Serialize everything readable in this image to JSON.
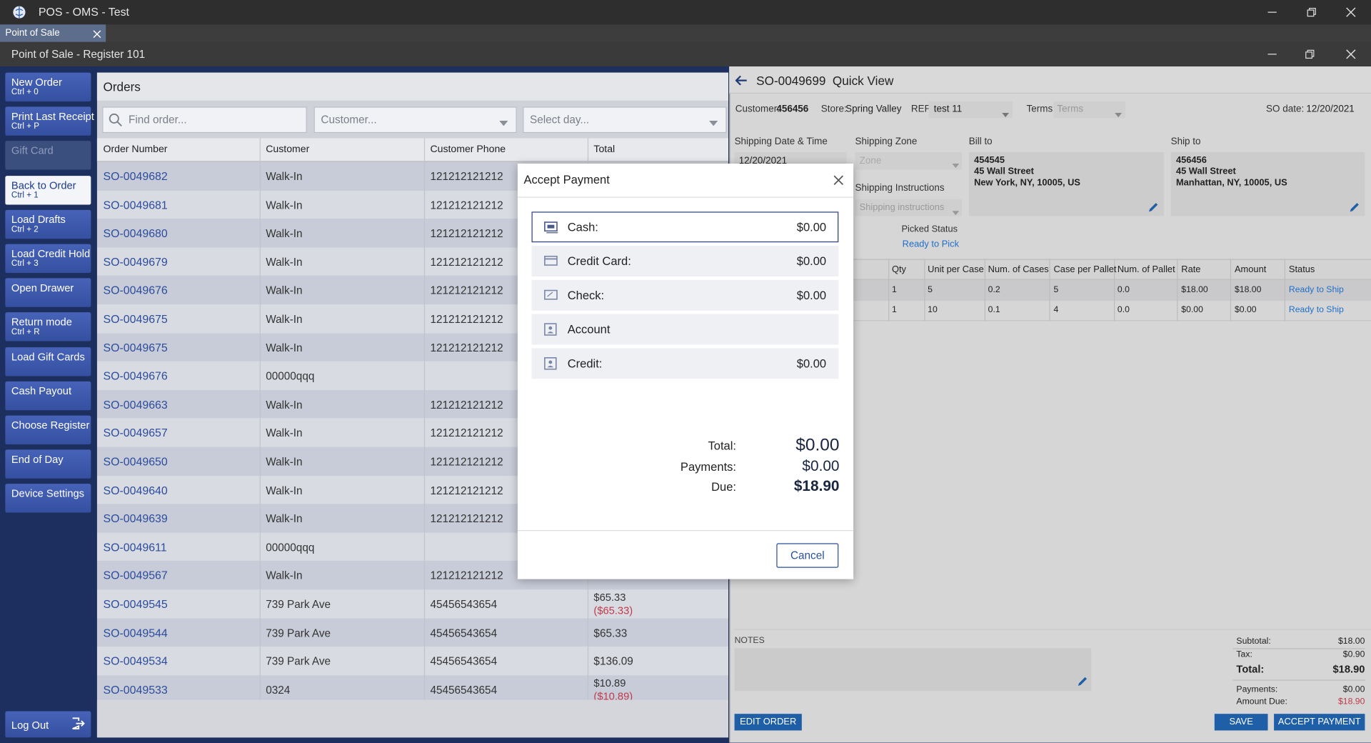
{
  "window": {
    "title": "POS - OMS - Test"
  },
  "tab": {
    "label": "Point of Sale"
  },
  "header": {
    "title": "Point of Sale - Register 101"
  },
  "sidebar": {
    "buttons": [
      {
        "label": "New Order",
        "shortcut": "Ctrl + 0"
      },
      {
        "label": "Print Last Receipt",
        "shortcut": "Ctrl + P"
      },
      {
        "label": "Gift Card"
      },
      {
        "label": "Back to Order",
        "shortcut": "Ctrl + 1"
      },
      {
        "label": "Load Drafts",
        "shortcut": "Ctrl + 2"
      },
      {
        "label": "Load Credit Hold",
        "shortcut": "Ctrl + 3"
      },
      {
        "label": "Open Drawer"
      },
      {
        "label": "Return mode",
        "shortcut": "Ctrl + R"
      },
      {
        "label": "Load Gift Cards"
      },
      {
        "label": "Cash Payout"
      },
      {
        "label": "Choose Register"
      },
      {
        "label": "End of Day"
      },
      {
        "label": "Device Settings"
      }
    ],
    "logout": "Log Out"
  },
  "orders": {
    "title": "Orders",
    "search": {
      "order": "Find order...",
      "customer": "Customer...",
      "day": "Select day..."
    },
    "columns": [
      "Order Number",
      "Customer",
      "Customer Phone",
      "Total"
    ],
    "rows": [
      {
        "order": "SO-0049682",
        "customer": "Walk-In",
        "phone": "121212121212"
      },
      {
        "order": "SO-0049681",
        "customer": "Walk-In",
        "phone": "121212121212"
      },
      {
        "order": "SO-0049680",
        "customer": "Walk-In",
        "phone": "121212121212"
      },
      {
        "order": "SO-0049679",
        "customer": "Walk-In",
        "phone": "121212121212"
      },
      {
        "order": "SO-0049676",
        "customer": "Walk-In",
        "phone": "121212121212"
      },
      {
        "order": "SO-0049675",
        "customer": "Walk-In",
        "phone": "121212121212"
      },
      {
        "order": "SO-0049675",
        "customer": "Walk-In",
        "phone": "121212121212"
      },
      {
        "order": "SO-0049676",
        "customer": "00000qqq"
      },
      {
        "order": "SO-0049663",
        "customer": "Walk-In",
        "phone": "121212121212"
      },
      {
        "order": "SO-0049657",
        "customer": "Walk-In",
        "phone": "121212121212"
      },
      {
        "order": "SO-0049650",
        "customer": "Walk-In",
        "phone": "121212121212"
      },
      {
        "order": "SO-0049640",
        "customer": "Walk-In",
        "phone": "121212121212"
      },
      {
        "order": "SO-0049639",
        "customer": "Walk-In",
        "phone": "121212121212"
      },
      {
        "order": "SO-0049611",
        "customer": "00000qqq"
      },
      {
        "order": "SO-0049567",
        "customer": "Walk-In",
        "phone": "121212121212"
      },
      {
        "order": "SO-0049545",
        "customer": "739 Park Ave",
        "phone": "45456543654",
        "total": "$65.33",
        "refund": "($65.33)"
      },
      {
        "order": "SO-0049544",
        "customer": "739 Park Ave",
        "phone": "45456543654",
        "total": "$65.33"
      },
      {
        "order": "SO-0049534",
        "customer": "739 Park Ave",
        "phone": "45456543654",
        "total": "$136.09"
      },
      {
        "order": "SO-0049533",
        "customer": "0324",
        "phone": "45456543654",
        "total": "$10.89",
        "refund": "($10.89)"
      }
    ]
  },
  "quick_view": {
    "title": "SO-0049699  Quick View",
    "customer": {
      "label": "Customer:",
      "value": "456456"
    },
    "store": {
      "label": "Store:",
      "value": "Spring Valley"
    },
    "rep": {
      "label": "REP:",
      "value": "test 11"
    },
    "terms": {
      "label": "Terms:",
      "value": "Terms"
    },
    "so_date": {
      "label": "SO date:",
      "value": "12/20/2021"
    },
    "shipping_date": {
      "label": "Shipping Date & Time",
      "value": "12/20/2021"
    },
    "shipping_zone": {
      "label": "Shipping Zone",
      "value": "Zone"
    },
    "shipping_instructions": {
      "label": "Shipping Instructions",
      "value": "Shipping instructions"
    },
    "bill_to": {
      "label": "Bill to",
      "lines": [
        "454545",
        "45 Wall Street",
        "New York, NY, 10005, US"
      ]
    },
    "ship_to": {
      "label": "Ship to",
      "lines": [
        "456456",
        "45 Wall Street",
        "Manhattan, NY, 10005, US"
      ]
    },
    "picked_status": {
      "label": "Picked Status",
      "value": "Ready to Pick"
    },
    "items": {
      "columns": [
        "Qty",
        "Unit per Case",
        "Num. of Cases",
        "Case per Pallet",
        "Num. of Pallet",
        "Rate",
        "Amount",
        "Status"
      ],
      "rows": [
        [
          "1",
          "5",
          "0.2",
          "5",
          "0.0",
          "$18.00",
          "$18.00",
          "Ready to Ship"
        ],
        [
          "1",
          "10",
          "0.1",
          "4",
          "0.0",
          "$0.00",
          "$0.00",
          "Ready to Ship"
        ]
      ]
    },
    "notes": {
      "label": "NOTES"
    },
    "totals": [
      {
        "label": "Subtotal:",
        "value": "$18.00"
      },
      {
        "label": "Tax:",
        "value": "$0.90"
      },
      {
        "label": "Total:",
        "value": "$18.90"
      },
      {
        "label": "Payments:",
        "value": "$0.00"
      },
      {
        "label": "Amount Due:",
        "value": "$18.90"
      }
    ],
    "buttons": {
      "edit": "EDIT ORDER",
      "save": "SAVE",
      "accept": "ACCEPT PAYMENT"
    }
  },
  "payment_dialog": {
    "title": "Accept Payment",
    "methods": [
      {
        "label": "Cash:",
        "amount": "$0.00"
      },
      {
        "label": "Credit Card:",
        "amount": "$0.00"
      },
      {
        "label": "Check:",
        "amount": "$0.00"
      },
      {
        "label": "Account"
      },
      {
        "label": "Credit:",
        "amount": "$0.00"
      }
    ],
    "summary": [
      {
        "label": "Total:",
        "value": "$0.00"
      },
      {
        "label": "Payments:",
        "value": "$0.00"
      },
      {
        "label": "Due:",
        "value": "$18.90"
      }
    ],
    "cancel": "Cancel"
  }
}
